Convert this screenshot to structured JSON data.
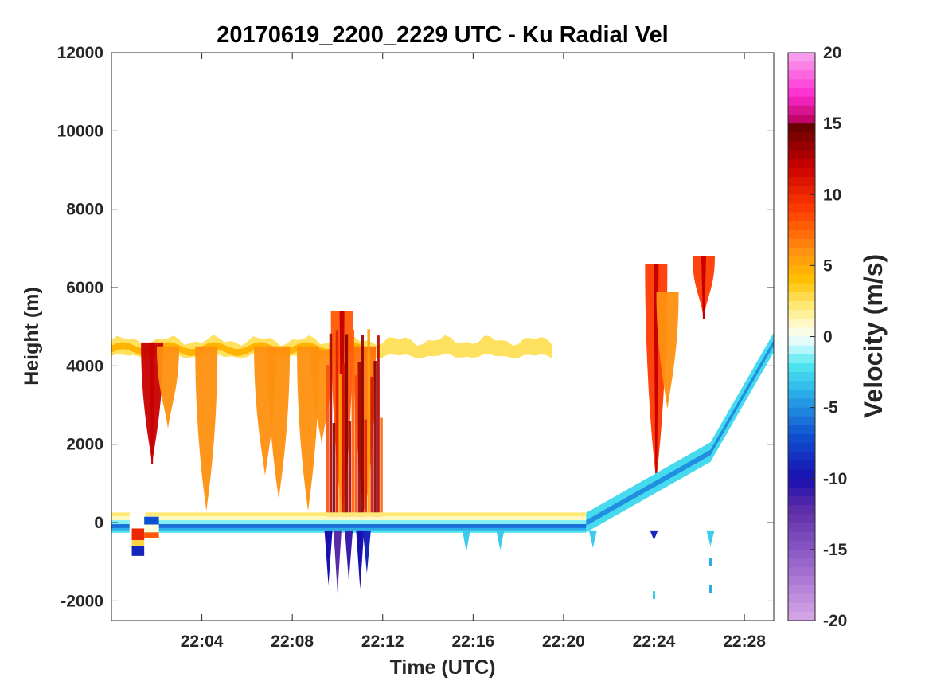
{
  "chart_data": {
    "type": "heatmap",
    "title": "20170619_2200_2229 UTC - Ku Radial Vel",
    "xlabel": "Time (UTC)",
    "ylabel": "Height (m)",
    "colorbar_label": "Velocity (m/s)",
    "x_range_minutes": [
      0,
      29.3
    ],
    "ylim": [
      -2500,
      12000
    ],
    "x_ticks": [
      {
        "minute": 4,
        "label": "22:04"
      },
      {
        "minute": 8,
        "label": "22:08"
      },
      {
        "minute": 12,
        "label": "22:12"
      },
      {
        "minute": 16,
        "label": "22:16"
      },
      {
        "minute": 20,
        "label": "22:20"
      },
      {
        "minute": 24,
        "label": "22:24"
      },
      {
        "minute": 28,
        "label": "22:28"
      }
    ],
    "y_ticks": [
      {
        "value": 12000,
        "label": "12000"
      },
      {
        "value": 10000,
        "label": "10000"
      },
      {
        "value": 8000,
        "label": "8000"
      },
      {
        "value": 6000,
        "label": "6000"
      },
      {
        "value": 4000,
        "label": "4000"
      },
      {
        "value": 2000,
        "label": "2000"
      },
      {
        "value": 0,
        "label": "0"
      },
      {
        "value": -2000,
        "label": "-2000"
      }
    ],
    "colorbar": {
      "range": [
        -20,
        20
      ],
      "ticks": [
        {
          "value": 20,
          "label": "20"
        },
        {
          "value": 15,
          "label": "15"
        },
        {
          "value": 10,
          "label": "10"
        },
        {
          "value": 5,
          "label": "5"
        },
        {
          "value": 0,
          "label": "0"
        },
        {
          "value": -5,
          "label": "-5"
        },
        {
          "value": -10,
          "label": "-10"
        },
        {
          "value": -15,
          "label": "-15"
        },
        {
          "value": -20,
          "label": "-20"
        }
      ],
      "stops": [
        {
          "v": -20,
          "c": "#d8a8e8"
        },
        {
          "v": -16,
          "c": "#9966cc"
        },
        {
          "v": -12,
          "c": "#5a2aa8"
        },
        {
          "v": -10,
          "c": "#1a10b0"
        },
        {
          "v": -7,
          "c": "#0f50d0"
        },
        {
          "v": -4,
          "c": "#2aaee8"
        },
        {
          "v": -2,
          "c": "#4fe8f0"
        },
        {
          "v": -0.5,
          "c": "#dcfcff"
        },
        {
          "v": 0.5,
          "c": "#fffde0"
        },
        {
          "v": 2,
          "c": "#ffec80"
        },
        {
          "v": 4,
          "c": "#ffc000"
        },
        {
          "v": 6,
          "c": "#ff9010"
        },
        {
          "v": 9,
          "c": "#ff3a00"
        },
        {
          "v": 12,
          "c": "#c80000"
        },
        {
          "v": 15,
          "c": "#600000"
        },
        {
          "v": 15.01,
          "c": "#b8005a"
        },
        {
          "v": 17,
          "c": "#ff2ad0"
        },
        {
          "v": 20,
          "c": "#f8a8f0"
        }
      ]
    },
    "features": {
      "ground_band": {
        "minute_start": 0,
        "minute_end": 21.0,
        "height_top": 250,
        "height_bottom": -250
      },
      "anvil_layer": {
        "minute_start": 0,
        "minute_end": 19.5,
        "height_base": 4400
      },
      "surface_ramp": [
        {
          "minute": 21.0,
          "height": 0
        },
        {
          "minute": 26.5,
          "height": 1800
        },
        {
          "minute": 29.3,
          "height": 4600
        }
      ],
      "fallstreaks": [
        {
          "minute": 1.8,
          "top": 4600,
          "bottom": 1500,
          "velocity": 12
        },
        {
          "minute": 2.5,
          "top": 4500,
          "bottom": 2400,
          "velocity": 6
        },
        {
          "minute": 4.2,
          "top": 4500,
          "bottom": 300,
          "velocity": 6
        },
        {
          "minute": 6.8,
          "top": 4500,
          "bottom": 1200,
          "velocity": 6
        },
        {
          "minute": 7.4,
          "top": 4500,
          "bottom": 600,
          "velocity": 6
        },
        {
          "minute": 8.7,
          "top": 4500,
          "bottom": 300,
          "velocity": 6
        },
        {
          "minute": 9.3,
          "top": 4400,
          "bottom": 2000,
          "velocity": 6
        },
        {
          "minute": 10.2,
          "top": 5400,
          "bottom": 200,
          "velocity": 8
        },
        {
          "minute": 11.2,
          "top": 4500,
          "bottom": 200,
          "velocity": 7
        },
        {
          "minute": 24.1,
          "top": 6600,
          "bottom": 1100,
          "velocity": 9
        },
        {
          "minute": 24.6,
          "top": 5900,
          "bottom": 2900,
          "velocity": 6
        },
        {
          "minute": 26.2,
          "top": 6800,
          "bottom": 5200,
          "velocity": 9
        }
      ]
    }
  }
}
